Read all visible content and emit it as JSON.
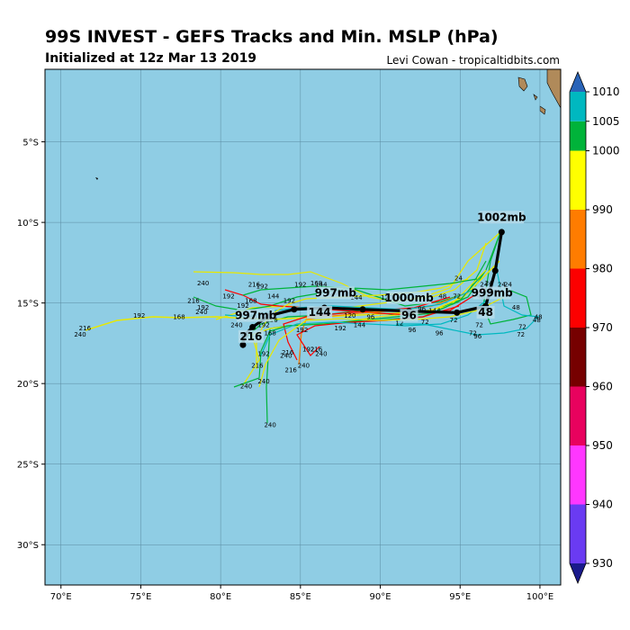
{
  "header": {
    "title": "99S INVEST - GEFS Tracks and Min. MSLP (hPa)",
    "subtitle": "Initialized at 12z Mar 13 2019",
    "credit": "Levi Cowan - tropicaltidbits.com"
  },
  "map": {
    "lon_range": [
      69,
      101.3
    ],
    "lat_range": [
      -32.5,
      -0.5
    ],
    "ocean_color": "#8fcde4",
    "land_color": "#b08a5a",
    "lon_ticks": [
      "70°E",
      "75°E",
      "80°E",
      "85°E",
      "90°E",
      "95°E",
      "100°E"
    ],
    "lat_ticks": [
      "5°S",
      "10°S",
      "15°S",
      "20°S",
      "25°S",
      "30°S"
    ],
    "mean_track": {
      "lons": [
        97.6,
        97.2,
        96.6,
        94.8,
        91.8,
        88.9,
        86.5,
        84.6,
        83.0,
        82.0,
        81.5,
        81.4
      ],
      "lats": [
        -10.6,
        -13.0,
        -15.2,
        -15.6,
        -15.5,
        -15.4,
        -15.3,
        -15.4,
        -15.8,
        -16.5,
        -17.0,
        -17.6
      ]
    },
    "pressure_labels": [
      {
        "text": "1002mb",
        "lon": 97.6,
        "lat": -9.9
      },
      {
        "text": "999mb",
        "lon": 97.0,
        "lat": -14.6
      },
      {
        "text": "1000mb",
        "lon": 91.8,
        "lat": -14.9
      },
      {
        "text": "997mb",
        "lon": 87.2,
        "lat": -14.6
      },
      {
        "text": "997mb",
        "lon": 82.2,
        "lat": -16.0
      }
    ],
    "hour_labels_big": [
      {
        "text": "48",
        "lon": 96.6,
        "lat": -15.8
      },
      {
        "text": "96",
        "lon": 91.8,
        "lat": -16.0
      },
      {
        "text": "144",
        "lon": 86.2,
        "lat": -15.8
      },
      {
        "text": "216",
        "lon": 81.9,
        "lat": -17.3
      }
    ],
    "hour_labels_small": [
      {
        "text": "24",
        "lon": 94.9,
        "lat": -13.6
      },
      {
        "text": "240",
        "lon": 78.9,
        "lat": -13.9
      },
      {
        "text": "216",
        "lon": 82.1,
        "lat": -14.0
      },
      {
        "text": "192",
        "lon": 82.6,
        "lat": -14.1
      },
      {
        "text": "192",
        "lon": 85.0,
        "lat": -14.0
      },
      {
        "text": "168",
        "lon": 86.0,
        "lat": -13.9
      },
      {
        "text": "144",
        "lon": 86.3,
        "lat": -14.0
      },
      {
        "text": "120",
        "lon": 87.0,
        "lat": -14.5
      },
      {
        "text": "144",
        "lon": 83.3,
        "lat": -14.7
      },
      {
        "text": "192",
        "lon": 80.5,
        "lat": -14.7
      },
      {
        "text": "168",
        "lon": 81.9,
        "lat": -15.0
      },
      {
        "text": "192",
        "lon": 84.3,
        "lat": -15.0
      },
      {
        "text": "216",
        "lon": 78.3,
        "lat": -15.0
      },
      {
        "text": "192",
        "lon": 81.4,
        "lat": -15.3
      },
      {
        "text": "192",
        "lon": 78.9,
        "lat": -15.4
      },
      {
        "text": "240",
        "lon": 78.8,
        "lat": -15.7
      },
      {
        "text": "144",
        "lon": 88.5,
        "lat": -14.8
      },
      {
        "text": "120",
        "lon": 90.4,
        "lat": -14.8
      },
      {
        "text": "48",
        "lon": 93.9,
        "lat": -14.7
      },
      {
        "text": "72",
        "lon": 94.8,
        "lat": -14.7
      },
      {
        "text": "48",
        "lon": 96.3,
        "lat": -14.7
      },
      {
        "text": "24",
        "lon": 96.5,
        "lat": -14.0
      },
      {
        "text": "24",
        "lon": 96.8,
        "lat": -13.9
      },
      {
        "text": "24",
        "lon": 97.6,
        "lat": -14.0
      },
      {
        "text": "24",
        "lon": 98.0,
        "lat": -14.0
      },
      {
        "text": "48",
        "lon": 98.5,
        "lat": -15.4
      },
      {
        "text": "48",
        "lon": 99.9,
        "lat": -16.0
      },
      {
        "text": "48",
        "lon": 99.8,
        "lat": -16.2
      },
      {
        "text": "72",
        "lon": 98.9,
        "lat": -16.6
      },
      {
        "text": "72",
        "lon": 98.8,
        "lat": -17.1
      },
      {
        "text": "72",
        "lon": 96.2,
        "lat": -16.5
      },
      {
        "text": "72",
        "lon": 95.8,
        "lat": -17.0
      },
      {
        "text": "96",
        "lon": 96.1,
        "lat": -17.2
      },
      {
        "text": "96",
        "lon": 93.7,
        "lat": -17.0
      },
      {
        "text": "96",
        "lon": 92.0,
        "lat": -16.8
      },
      {
        "text": "72",
        "lon": 92.8,
        "lat": -16.3
      },
      {
        "text": "72",
        "lon": 94.6,
        "lat": -16.2
      },
      {
        "text": "96",
        "lon": 89.4,
        "lat": -16.0
      },
      {
        "text": "120",
        "lon": 88.1,
        "lat": -15.9
      },
      {
        "text": "144",
        "lon": 88.7,
        "lat": -16.5
      },
      {
        "text": "192",
        "lon": 87.5,
        "lat": -16.7
      },
      {
        "text": "168",
        "lon": 81.9,
        "lat": -16.0
      },
      {
        "text": "240",
        "lon": 81.0,
        "lat": -16.5
      },
      {
        "text": "192",
        "lon": 82.7,
        "lat": -16.5
      },
      {
        "text": "216",
        "lon": 83.2,
        "lat": -16.2
      },
      {
        "text": "168",
        "lon": 83.1,
        "lat": -17.0
      },
      {
        "text": "192",
        "lon": 85.1,
        "lat": -16.8
      },
      {
        "text": "192",
        "lon": 82.7,
        "lat": -18.3
      },
      {
        "text": "216",
        "lon": 84.2,
        "lat": -18.2
      },
      {
        "text": "240",
        "lon": 84.1,
        "lat": -18.4
      },
      {
        "text": "216",
        "lon": 86.0,
        "lat": -18.0
      },
      {
        "text": "192",
        "lon": 85.5,
        "lat": -18.0
      },
      {
        "text": "240",
        "lon": 86.3,
        "lat": -18.3
      },
      {
        "text": "216",
        "lon": 82.3,
        "lat": -19.0
      },
      {
        "text": "240",
        "lon": 85.2,
        "lat": -19.0
      },
      {
        "text": "216",
        "lon": 84.4,
        "lat": -19.3
      },
      {
        "text": "240",
        "lon": 81.6,
        "lat": -20.3
      },
      {
        "text": "240",
        "lon": 82.7,
        "lat": -20.0
      },
      {
        "text": "240",
        "lon": 83.1,
        "lat": -22.7
      },
      {
        "text": "216",
        "lon": 71.5,
        "lat": -16.7
      },
      {
        "text": "240",
        "lon": 71.2,
        "lat": -17.1
      },
      {
        "text": "192",
        "lon": 74.9,
        "lat": -15.9
      },
      {
        "text": "168",
        "lon": 77.4,
        "lat": -16.0
      },
      {
        "text": "144",
        "lon": 93.4,
        "lat": -15.6
      },
      {
        "text": "96",
        "lon": 92.6,
        "lat": -15.5
      },
      {
        "text": "12",
        "lon": 91.2,
        "lat": -16.4
      }
    ]
  },
  "colorbar": {
    "ticks": [
      "1010",
      "1005",
      "1000",
      "990",
      "980",
      "970",
      "960",
      "950",
      "940",
      "930"
    ],
    "colors": [
      "#6a3bf2",
      "#ff37ff",
      "#e8025e",
      "#760000",
      "#fc0000",
      "#ff7c00",
      "#ffff00",
      "#00b33a",
      "#00b8c0",
      "#2a64b8"
    ]
  }
}
